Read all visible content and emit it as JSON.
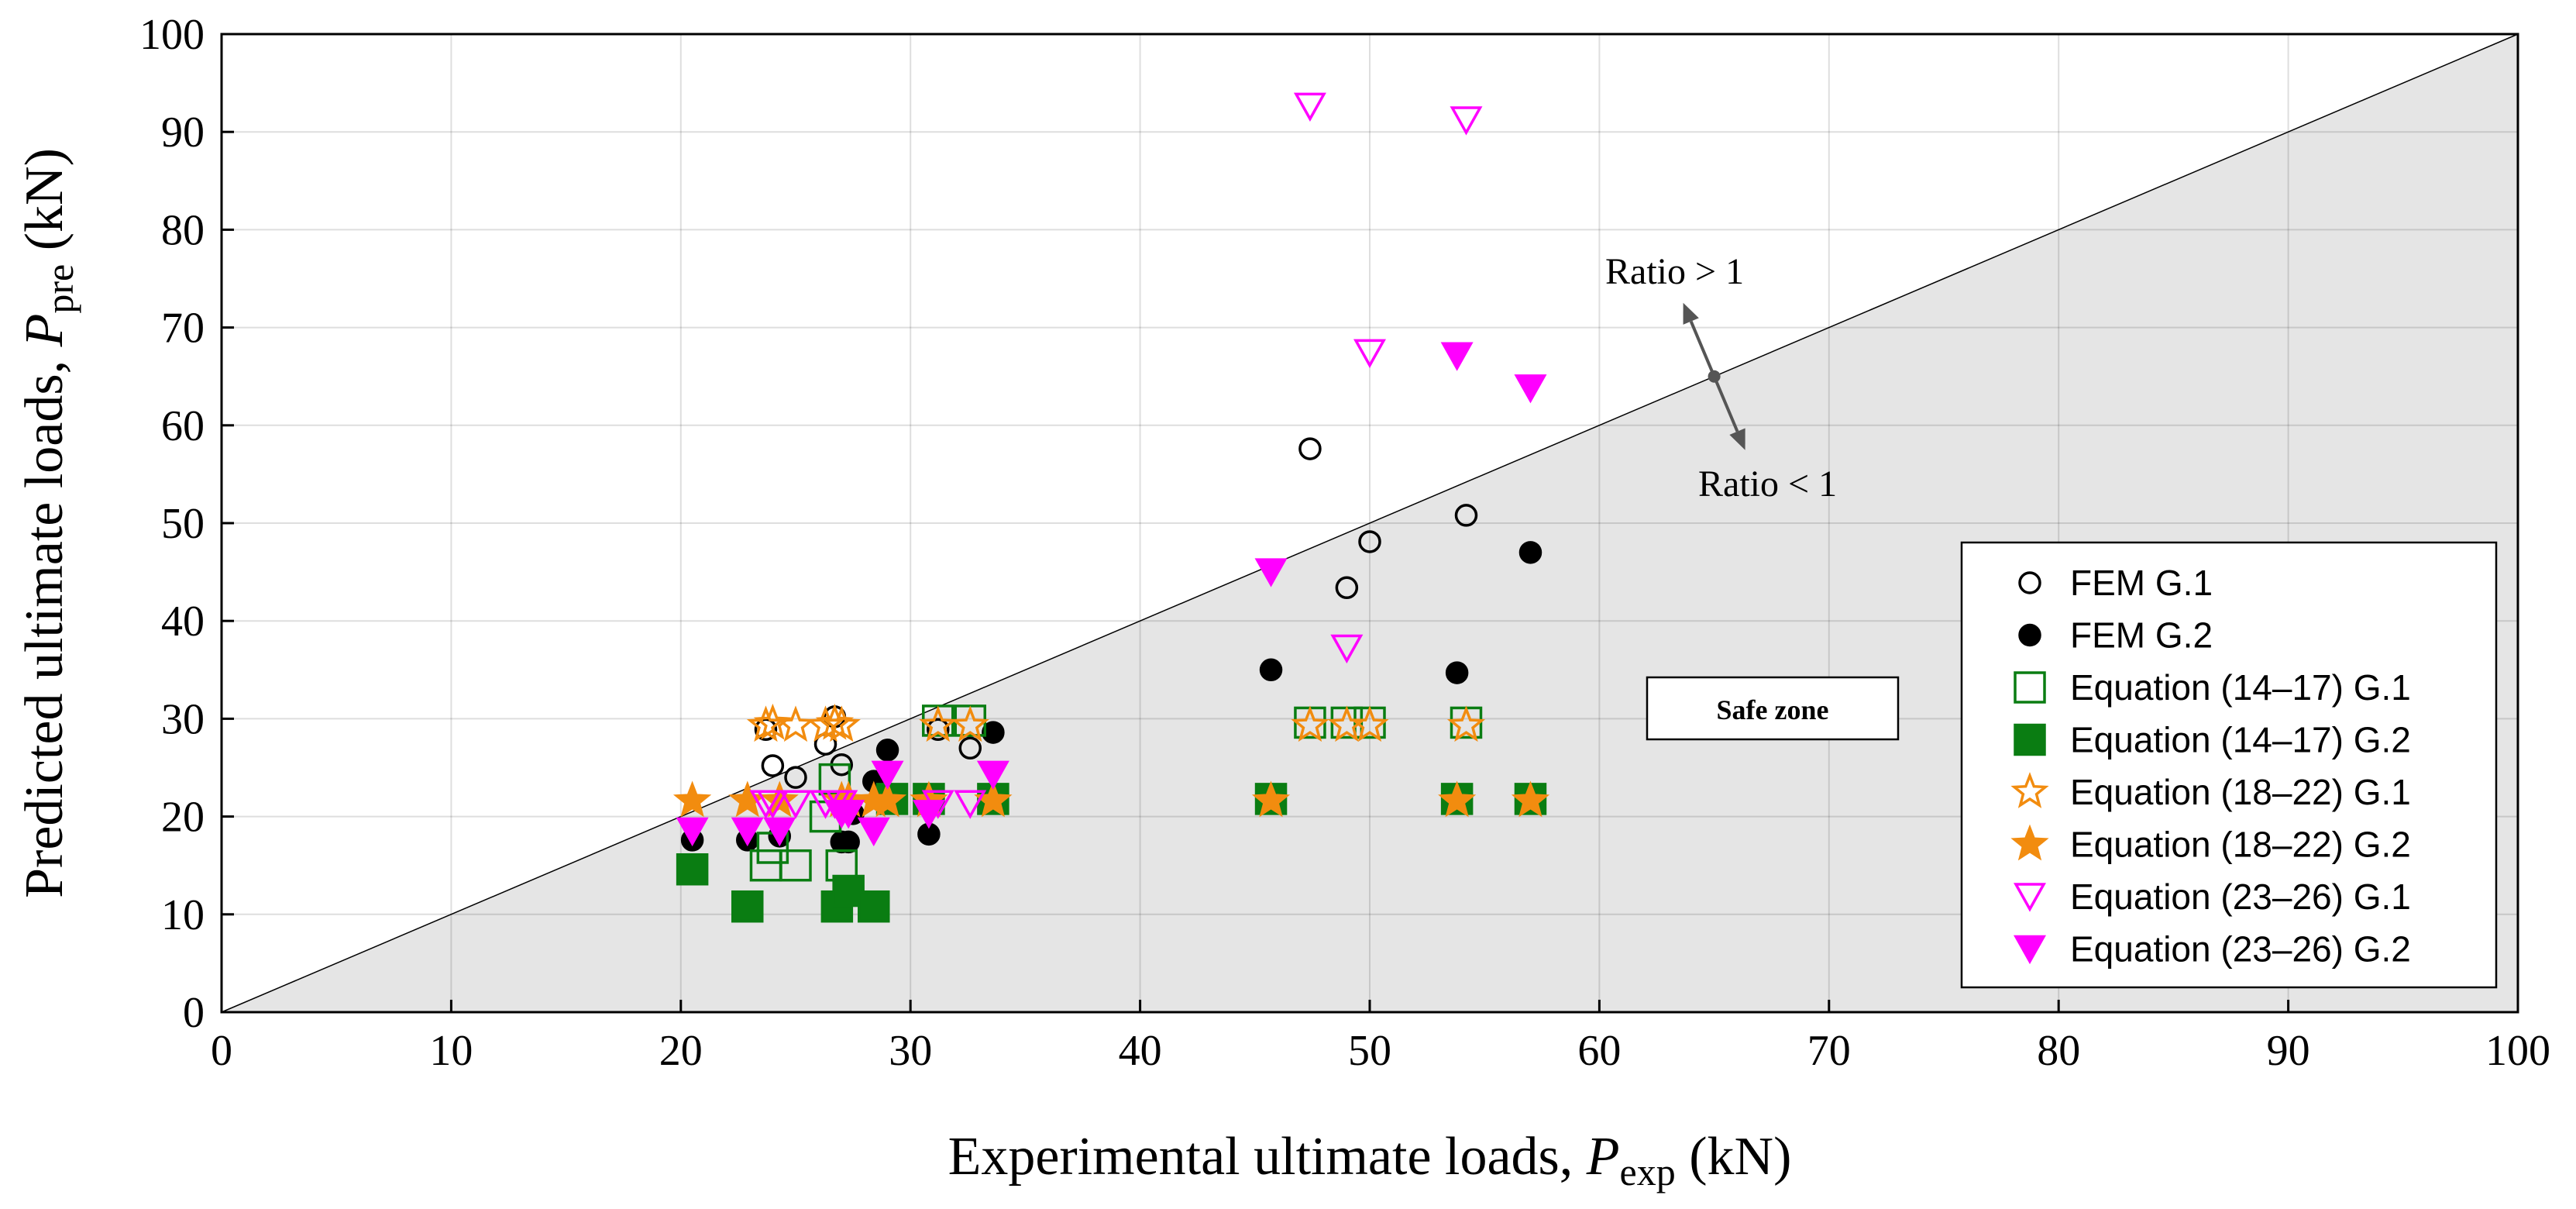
{
  "chart_data": {
    "type": "scatter",
    "xlabel_prefix": "Experimental ultimate loads, ",
    "xlabel_var": "P",
    "xlabel_sub": "exp",
    "xlabel_unit": " (kN)",
    "ylabel_prefix": "Predicted ultimate loads, ",
    "ylabel_var": "P",
    "ylabel_sub": "pre",
    "ylabel_unit": " (kN)",
    "xlim": [
      0,
      100
    ],
    "ylim": [
      0,
      100
    ],
    "xticks": [
      "0",
      "10",
      "20",
      "30",
      "40",
      "50",
      "60",
      "70",
      "80",
      "90",
      "100"
    ],
    "yticks": [
      "0",
      "10",
      "20",
      "30",
      "40",
      "50",
      "60",
      "70",
      "80",
      "90",
      "100"
    ],
    "grid": true,
    "reference_line": {
      "from": [
        0,
        0
      ],
      "to": [
        100,
        100
      ]
    },
    "annotations": {
      "ratio_above": "Ratio > 1",
      "ratio_below": "Ratio < 1",
      "safe_zone": "Safe zone",
      "pivot": [
        65,
        65
      ]
    },
    "legend_position": "bottom-right",
    "colors": {
      "green": "#0a7d12",
      "orange": "#f28c0f",
      "magenta": "#ff00ff",
      "black": "#000000",
      "shade": "#e5e5e5"
    },
    "series": [
      {
        "name": "FEM G.1",
        "marker": "circle-open",
        "color": "#000000",
        "points": [
          [
            23.7,
            28.9
          ],
          [
            24.0,
            25.2
          ],
          [
            25.0,
            24.0
          ],
          [
            26.3,
            27.4
          ],
          [
            26.7,
            30.2
          ],
          [
            27.0,
            25.3
          ],
          [
            31.2,
            28.9
          ],
          [
            32.6,
            27.0
          ],
          [
            47.4,
            57.6
          ],
          [
            49.0,
            43.4
          ],
          [
            50.0,
            48.1
          ],
          [
            54.2,
            50.8
          ]
        ]
      },
      {
        "name": "FEM G.2",
        "marker": "circle-filled",
        "color": "#000000",
        "points": [
          [
            20.5,
            17.6
          ],
          [
            22.9,
            17.6
          ],
          [
            24.3,
            18.0
          ],
          [
            27.0,
            17.4
          ],
          [
            27.3,
            17.4
          ],
          [
            27.5,
            20.3
          ],
          [
            28.4,
            23.6
          ],
          [
            29.0,
            26.8
          ],
          [
            30.8,
            18.2
          ],
          [
            33.6,
            28.6
          ],
          [
            45.7,
            35.0
          ],
          [
            53.8,
            34.7
          ],
          [
            57.0,
            47.0
          ]
        ]
      },
      {
        "name": "Equation (14–17) G.1",
        "marker": "square-open",
        "color": "#0a7d12",
        "points": [
          [
            23.7,
            15.0
          ],
          [
            24.0,
            16.8
          ],
          [
            25.0,
            15.0
          ],
          [
            26.3,
            20.0
          ],
          [
            26.7,
            23.8
          ],
          [
            27.0,
            15.0
          ],
          [
            31.2,
            29.8
          ],
          [
            32.6,
            29.8
          ],
          [
            47.4,
            29.6
          ],
          [
            49.0,
            29.6
          ],
          [
            50.0,
            29.6
          ],
          [
            54.2,
            29.6
          ]
        ]
      },
      {
        "name": "Equation (14–17) G.2",
        "marker": "square-filled",
        "color": "#0a7d12",
        "points": [
          [
            20.5,
            14.6
          ],
          [
            22.9,
            10.8
          ],
          [
            26.8,
            10.8
          ],
          [
            27.3,
            12.4
          ],
          [
            28.4,
            10.8
          ],
          [
            29.2,
            21.8
          ],
          [
            30.8,
            21.8
          ],
          [
            33.6,
            21.8
          ],
          [
            45.7,
            21.8
          ],
          [
            53.8,
            21.8
          ],
          [
            57.0,
            21.8
          ]
        ]
      },
      {
        "name": "Equation (18–22) G.1",
        "marker": "star-open",
        "color": "#f28c0f",
        "points": [
          [
            23.7,
            29.3
          ],
          [
            24.0,
            29.5
          ],
          [
            25.0,
            29.3
          ],
          [
            26.3,
            29.3
          ],
          [
            26.7,
            29.5
          ],
          [
            27.0,
            29.3
          ],
          [
            31.2,
            29.3
          ],
          [
            32.6,
            29.3
          ],
          [
            47.4,
            29.3
          ],
          [
            49.0,
            29.3
          ],
          [
            50.0,
            29.3
          ],
          [
            54.2,
            29.3
          ]
        ]
      },
      {
        "name": "Equation (18–22) G.2",
        "marker": "star-filled",
        "color": "#f28c0f",
        "points": [
          [
            20.5,
            21.6
          ],
          [
            22.9,
            21.6
          ],
          [
            24.3,
            21.6
          ],
          [
            27.0,
            21.6
          ],
          [
            27.3,
            21.6
          ],
          [
            28.4,
            21.6
          ],
          [
            29.0,
            21.6
          ],
          [
            30.8,
            21.6
          ],
          [
            33.6,
            21.6
          ],
          [
            45.7,
            21.6
          ],
          [
            53.8,
            21.6
          ],
          [
            57.0,
            21.6
          ]
        ]
      },
      {
        "name": "Equation (23–26) G.1",
        "marker": "triangle-open",
        "color": "#ff00ff",
        "points": [
          [
            23.7,
            21.3
          ],
          [
            24.0,
            21.3
          ],
          [
            25.0,
            21.3
          ],
          [
            26.3,
            21.3
          ],
          [
            26.7,
            21.3
          ],
          [
            27.0,
            21.3
          ],
          [
            31.2,
            21.3
          ],
          [
            32.6,
            21.3
          ],
          [
            47.4,
            92.6
          ],
          [
            49.0,
            37.2
          ],
          [
            50.0,
            67.4
          ],
          [
            54.2,
            91.2
          ]
        ]
      },
      {
        "name": "Equation (23–26) G.2",
        "marker": "triangle-filled",
        "color": "#ff00ff",
        "points": [
          [
            20.5,
            18.5
          ],
          [
            22.9,
            18.5
          ],
          [
            24.3,
            18.5
          ],
          [
            27.0,
            20.3
          ],
          [
            27.3,
            20.3
          ],
          [
            28.4,
            18.5
          ],
          [
            29.0,
            24.3
          ],
          [
            30.8,
            20.3
          ],
          [
            33.6,
            24.3
          ],
          [
            45.7,
            45.0
          ],
          [
            53.8,
            67.1
          ],
          [
            57.0,
            63.8
          ]
        ]
      }
    ]
  }
}
